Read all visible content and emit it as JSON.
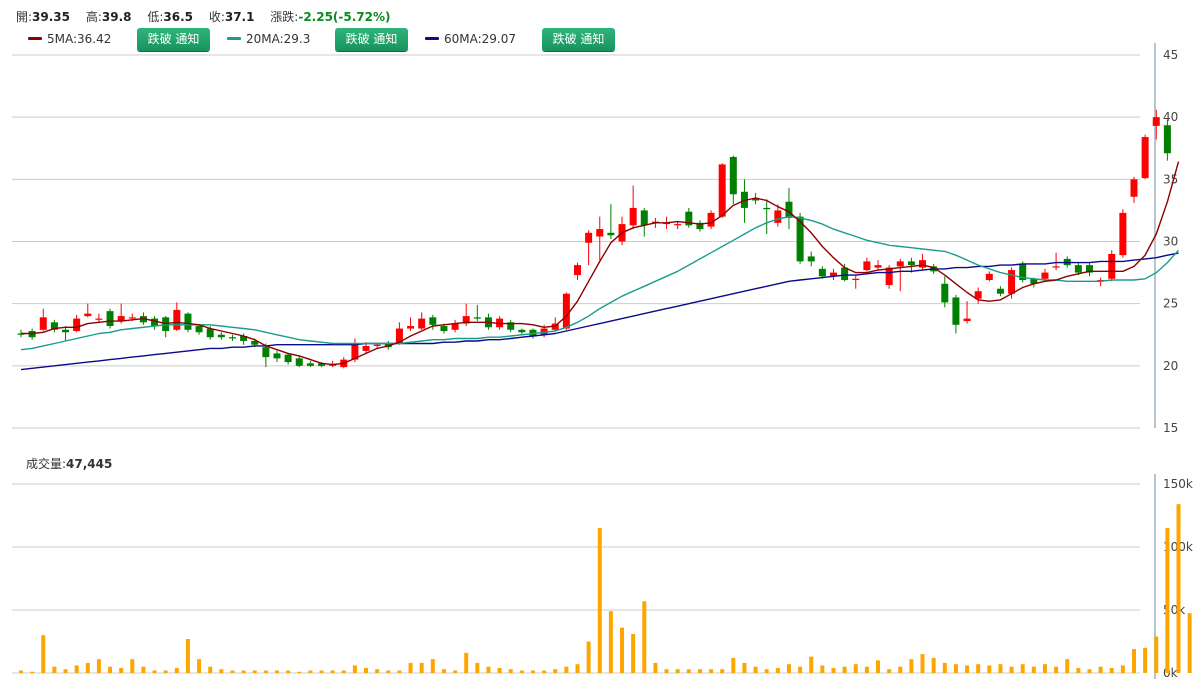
{
  "quote": {
    "open_label": "開:",
    "open": "39.35",
    "high_label": "高:",
    "high": "39.8",
    "low_label": "低:",
    "low": "36.5",
    "close_label": "收:",
    "close": "37.1",
    "change_label": "漲跌:",
    "change": "-2.25(-5.72%)"
  },
  "ma_legend": [
    {
      "label": "5MA:36.42",
      "color": "#8b0000",
      "button": "跌破 通知"
    },
    {
      "label": "20MA:29.3",
      "color": "#1a9c8c",
      "button": "跌破 通知"
    },
    {
      "label": "60MA:29.07",
      "color": "#0a0a8a",
      "button": "跌破 通知"
    }
  ],
  "volume": {
    "label": "成交量:",
    "value": "47,445"
  },
  "colors": {
    "up": "#ff0000",
    "down": "#008000",
    "volume_bar": "#ffa500",
    "grid": "#cccccc"
  },
  "chart_data": [
    {
      "type": "candlestick",
      "yticks": [
        "45",
        "40",
        "35",
        "30",
        "25",
        "20",
        "15"
      ],
      "ylim": [
        15,
        45
      ],
      "grid": true,
      "candles": [
        {
          "o": 22.6,
          "c": 22.5,
          "h": 22.9,
          "l": 22.3
        },
        {
          "o": 22.8,
          "c": 22.3,
          "h": 23.0,
          "l": 22.1
        },
        {
          "o": 22.9,
          "c": 23.9,
          "h": 24.6,
          "l": 22.8
        },
        {
          "o": 23.5,
          "c": 22.9,
          "h": 23.7,
          "l": 22.7
        },
        {
          "o": 22.9,
          "c": 22.7,
          "h": 23.2,
          "l": 22.0
        },
        {
          "o": 22.8,
          "c": 23.8,
          "h": 24.1,
          "l": 22.7
        },
        {
          "o": 24.0,
          "c": 24.2,
          "h": 25.0,
          "l": 23.9
        },
        {
          "o": 23.8,
          "c": 23.8,
          "h": 24.2,
          "l": 23.5
        },
        {
          "o": 24.4,
          "c": 23.2,
          "h": 24.6,
          "l": 23.0
        },
        {
          "o": 23.6,
          "c": 24.0,
          "h": 25.0,
          "l": 23.4
        },
        {
          "o": 23.9,
          "c": 23.9,
          "h": 24.2,
          "l": 23.6
        },
        {
          "o": 24.0,
          "c": 23.5,
          "h": 24.3,
          "l": 23.3
        },
        {
          "o": 23.8,
          "c": 23.2,
          "h": 24.0,
          "l": 22.9
        },
        {
          "o": 23.9,
          "c": 22.8,
          "h": 24.0,
          "l": 22.3
        },
        {
          "o": 22.9,
          "c": 24.5,
          "h": 25.1,
          "l": 22.8
        },
        {
          "o": 24.2,
          "c": 22.9,
          "h": 24.3,
          "l": 22.7
        },
        {
          "o": 23.2,
          "c": 22.7,
          "h": 23.3,
          "l": 22.5
        },
        {
          "o": 23.0,
          "c": 22.3,
          "h": 23.2,
          "l": 22.1
        },
        {
          "o": 22.5,
          "c": 22.3,
          "h": 22.7,
          "l": 22.1
        },
        {
          "o": 22.3,
          "c": 22.2,
          "h": 22.5,
          "l": 22.0
        },
        {
          "o": 22.4,
          "c": 22.0,
          "h": 22.6,
          "l": 21.7
        },
        {
          "o": 22.0,
          "c": 21.7,
          "h": 22.2,
          "l": 21.5
        },
        {
          "o": 21.5,
          "c": 20.7,
          "h": 21.8,
          "l": 19.9
        },
        {
          "o": 21.0,
          "c": 20.6,
          "h": 21.2,
          "l": 20.3
        },
        {
          "o": 20.9,
          "c": 20.3,
          "h": 21.0,
          "l": 20.1
        },
        {
          "o": 20.6,
          "c": 20.0,
          "h": 20.8,
          "l": 19.9
        },
        {
          "o": 20.2,
          "c": 20.0,
          "h": 20.4,
          "l": 19.9
        },
        {
          "o": 20.2,
          "c": 20.0,
          "h": 20.3,
          "l": 19.9
        },
        {
          "o": 20.1,
          "c": 20.1,
          "h": 20.4,
          "l": 19.9
        },
        {
          "o": 19.9,
          "c": 20.5,
          "h": 20.7,
          "l": 19.8
        },
        {
          "o": 20.5,
          "c": 21.8,
          "h": 22.2,
          "l": 20.3
        },
        {
          "o": 21.2,
          "c": 21.6,
          "h": 21.9,
          "l": 21.0
        },
        {
          "o": 21.6,
          "c": 21.7,
          "h": 21.8,
          "l": 21.4
        },
        {
          "o": 21.8,
          "c": 21.5,
          "h": 22.0,
          "l": 21.3
        },
        {
          "o": 21.8,
          "c": 23.0,
          "h": 23.5,
          "l": 21.7
        },
        {
          "o": 23.0,
          "c": 23.2,
          "h": 23.9,
          "l": 22.8
        },
        {
          "o": 23.0,
          "c": 23.8,
          "h": 24.3,
          "l": 22.9
        },
        {
          "o": 23.9,
          "c": 23.3,
          "h": 24.1,
          "l": 22.9
        },
        {
          "o": 23.2,
          "c": 22.8,
          "h": 23.4,
          "l": 22.6
        },
        {
          "o": 22.9,
          "c": 23.4,
          "h": 23.7,
          "l": 22.7
        },
        {
          "o": 23.4,
          "c": 24.0,
          "h": 25.0,
          "l": 23.2
        },
        {
          "o": 23.9,
          "c": 23.8,
          "h": 24.9,
          "l": 23.6
        },
        {
          "o": 23.9,
          "c": 23.1,
          "h": 24.2,
          "l": 22.9
        },
        {
          "o": 23.1,
          "c": 23.8,
          "h": 24.0,
          "l": 22.9
        },
        {
          "o": 23.5,
          "c": 22.9,
          "h": 23.7,
          "l": 22.7
        },
        {
          "o": 22.9,
          "c": 22.7,
          "h": 23.0,
          "l": 22.5
        },
        {
          "o": 22.9,
          "c": 22.4,
          "h": 23.0,
          "l": 22.2
        },
        {
          "o": 22.5,
          "c": 23.0,
          "h": 23.3,
          "l": 22.3
        },
        {
          "o": 22.9,
          "c": 23.4,
          "h": 23.9,
          "l": 22.8
        },
        {
          "o": 23.0,
          "c": 25.8,
          "h": 25.9,
          "l": 22.9
        },
        {
          "o": 27.3,
          "c": 28.1,
          "h": 28.3,
          "l": 26.9
        },
        {
          "o": 29.9,
          "c": 30.7,
          "h": 30.9,
          "l": 28.1
        },
        {
          "o": 30.4,
          "c": 31.0,
          "h": 32.0,
          "l": 28.5
        },
        {
          "o": 30.7,
          "c": 30.5,
          "h": 33.0,
          "l": 30.2
        },
        {
          "o": 30.0,
          "c": 31.4,
          "h": 32.0,
          "l": 29.7
        },
        {
          "o": 31.3,
          "c": 32.7,
          "h": 34.5,
          "l": 31.0
        },
        {
          "o": 32.5,
          "c": 31.3,
          "h": 32.7,
          "l": 30.4
        },
        {
          "o": 31.5,
          "c": 31.6,
          "h": 31.9,
          "l": 31.1
        },
        {
          "o": 31.4,
          "c": 31.5,
          "h": 32.0,
          "l": 31.0
        },
        {
          "o": 31.4,
          "c": 31.4,
          "h": 31.6,
          "l": 31.0
        },
        {
          "o": 32.4,
          "c": 31.3,
          "h": 32.7,
          "l": 31.1
        },
        {
          "o": 31.5,
          "c": 31.0,
          "h": 31.7,
          "l": 30.8
        },
        {
          "o": 31.2,
          "c": 32.3,
          "h": 32.5,
          "l": 31.0
        },
        {
          "o": 32.0,
          "c": 36.2,
          "h": 36.3,
          "l": 31.9
        },
        {
          "o": 36.8,
          "c": 33.8,
          "h": 36.9,
          "l": 33.0
        },
        {
          "o": 34.0,
          "c": 32.7,
          "h": 35.0,
          "l": 31.5
        },
        {
          "o": 33.5,
          "c": 33.3,
          "h": 33.9,
          "l": 33.0
        },
        {
          "o": 32.7,
          "c": 32.6,
          "h": 33.4,
          "l": 30.6
        },
        {
          "o": 31.5,
          "c": 32.5,
          "h": 33.0,
          "l": 31.2
        },
        {
          "o": 33.2,
          "c": 31.9,
          "h": 34.3,
          "l": 31.0
        },
        {
          "o": 32.0,
          "c": 28.4,
          "h": 32.3,
          "l": 28.2
        },
        {
          "o": 28.8,
          "c": 28.4,
          "h": 29.2,
          "l": 28.0
        },
        {
          "o": 27.8,
          "c": 27.2,
          "h": 28.0,
          "l": 27.0
        },
        {
          "o": 27.2,
          "c": 27.5,
          "h": 27.8,
          "l": 26.9
        },
        {
          "o": 27.9,
          "c": 26.9,
          "h": 28.2,
          "l": 26.8
        },
        {
          "o": 26.9,
          "c": 27.0,
          "h": 27.3,
          "l": 26.2
        },
        {
          "o": 27.7,
          "c": 28.4,
          "h": 28.7,
          "l": 27.6
        },
        {
          "o": 27.9,
          "c": 28.1,
          "h": 28.5,
          "l": 27.7
        },
        {
          "o": 26.5,
          "c": 27.9,
          "h": 28.1,
          "l": 26.2
        },
        {
          "o": 28.0,
          "c": 28.4,
          "h": 28.6,
          "l": 26.0
        },
        {
          "o": 28.4,
          "c": 28.1,
          "h": 28.7,
          "l": 27.5
        },
        {
          "o": 27.9,
          "c": 28.5,
          "h": 29.0,
          "l": 27.7
        },
        {
          "o": 28.0,
          "c": 27.6,
          "h": 28.2,
          "l": 27.4
        },
        {
          "o": 26.6,
          "c": 25.1,
          "h": 27.2,
          "l": 24.7
        },
        {
          "o": 25.5,
          "c": 23.3,
          "h": 25.7,
          "l": 22.6
        },
        {
          "o": 23.6,
          "c": 23.8,
          "h": 25.2,
          "l": 23.4
        },
        {
          "o": 25.4,
          "c": 26.0,
          "h": 26.3,
          "l": 25.0
        },
        {
          "o": 26.9,
          "c": 27.4,
          "h": 27.6,
          "l": 26.8
        },
        {
          "o": 26.2,
          "c": 25.8,
          "h": 26.4,
          "l": 25.6
        },
        {
          "o": 25.8,
          "c": 27.7,
          "h": 27.9,
          "l": 25.4
        },
        {
          "o": 28.2,
          "c": 26.9,
          "h": 28.4,
          "l": 26.7
        },
        {
          "o": 27.0,
          "c": 26.6,
          "h": 27.1,
          "l": 26.3
        },
        {
          "o": 27.0,
          "c": 27.5,
          "h": 27.8,
          "l": 26.8
        },
        {
          "o": 27.9,
          "c": 28.0,
          "h": 29.1,
          "l": 27.7
        },
        {
          "o": 28.6,
          "c": 28.1,
          "h": 28.8,
          "l": 27.9
        },
        {
          "o": 28.1,
          "c": 27.5,
          "h": 28.3,
          "l": 27.3
        },
        {
          "o": 28.1,
          "c": 27.5,
          "h": 28.3,
          "l": 27.2
        },
        {
          "o": 26.8,
          "c": 26.9,
          "h": 27.1,
          "l": 26.4
        },
        {
          "o": 27.0,
          "c": 29.0,
          "h": 29.3,
          "l": 26.8
        },
        {
          "o": 28.9,
          "c": 32.3,
          "h": 32.6,
          "l": 28.7
        },
        {
          "o": 33.6,
          "c": 35.0,
          "h": 35.2,
          "l": 33.1
        },
        {
          "o": 35.1,
          "c": 38.4,
          "h": 38.6,
          "l": 35.0
        },
        {
          "o": 39.3,
          "c": 40.0,
          "h": 40.6,
          "l": 38.2
        },
        {
          "o": 39.35,
          "c": 37.1,
          "h": 39.8,
          "l": 36.5
        }
      ],
      "ma5": [
        22.6,
        22.6,
        22.7,
        23.0,
        23.1,
        23.1,
        23.4,
        23.5,
        23.6,
        23.6,
        23.7,
        23.8,
        23.6,
        23.4,
        23.5,
        23.4,
        23.3,
        23.0,
        22.8,
        22.6,
        22.4,
        22.1,
        21.6,
        21.3,
        21.0,
        20.8,
        20.5,
        20.2,
        20.1,
        20.2,
        20.6,
        21.0,
        21.4,
        21.6,
        21.9,
        22.4,
        22.8,
        23.2,
        23.3,
        23.4,
        23.5,
        23.5,
        23.5,
        23.4,
        23.4,
        23.4,
        23.3,
        23.1,
        23.2,
        24.0,
        25.2,
        26.8,
        28.4,
        29.9,
        30.7,
        31.1,
        31.3,
        31.5,
        31.5,
        31.6,
        31.5,
        31.4,
        31.5,
        32.1,
        32.9,
        33.3,
        33.5,
        33.3,
        32.8,
        32.4,
        31.6,
        30.7,
        29.6,
        28.7,
        27.9,
        27.5,
        27.5,
        27.7,
        27.8,
        27.9,
        28.0,
        28.1,
        27.9,
        27.3,
        26.6,
        25.9,
        25.3,
        25.2,
        25.3,
        25.8,
        26.3,
        26.6,
        26.8,
        26.9,
        27.2,
        27.4,
        27.6,
        27.6,
        27.6,
        27.6,
        28.0,
        28.9,
        30.6,
        33.2,
        36.42
      ],
      "ma20": [
        21.3,
        21.4,
        21.6,
        21.8,
        22.0,
        22.2,
        22.4,
        22.6,
        22.7,
        22.9,
        23.0,
        23.1,
        23.2,
        23.3,
        23.3,
        23.3,
        23.3,
        23.3,
        23.2,
        23.1,
        23.0,
        22.9,
        22.7,
        22.5,
        22.3,
        22.1,
        22.0,
        21.9,
        21.8,
        21.8,
        21.8,
        21.8,
        21.8,
        21.8,
        21.8,
        21.9,
        22.0,
        22.1,
        22.1,
        22.2,
        22.2,
        22.2,
        22.3,
        22.3,
        22.4,
        22.5,
        22.6,
        22.7,
        22.8,
        23.1,
        23.5,
        24.0,
        24.6,
        25.1,
        25.6,
        26.0,
        26.4,
        26.8,
        27.2,
        27.6,
        28.1,
        28.6,
        29.1,
        29.6,
        30.1,
        30.6,
        31.1,
        31.5,
        31.8,
        32.0,
        31.9,
        31.7,
        31.4,
        31.0,
        30.7,
        30.4,
        30.1,
        29.9,
        29.7,
        29.6,
        29.5,
        29.4,
        29.3,
        29.2,
        28.9,
        28.5,
        28.1,
        27.8,
        27.5,
        27.3,
        27.1,
        27.0,
        26.9,
        26.9,
        26.8,
        26.8,
        26.8,
        26.8,
        26.9,
        26.9,
        26.9,
        27.0,
        27.5,
        28.3,
        29.3
      ],
      "ma60": [
        19.7,
        19.8,
        19.9,
        20.0,
        20.1,
        20.2,
        20.3,
        20.4,
        20.5,
        20.6,
        20.7,
        20.8,
        20.9,
        21.0,
        21.1,
        21.2,
        21.3,
        21.4,
        21.4,
        21.5,
        21.5,
        21.6,
        21.6,
        21.7,
        21.7,
        21.7,
        21.7,
        21.7,
        21.7,
        21.7,
        21.7,
        21.8,
        21.8,
        21.8,
        21.8,
        21.8,
        21.8,
        21.8,
        21.9,
        21.9,
        22.0,
        22.0,
        22.1,
        22.1,
        22.2,
        22.3,
        22.4,
        22.5,
        22.6,
        22.8,
        23.0,
        23.2,
        23.4,
        23.6,
        23.8,
        24.0,
        24.2,
        24.4,
        24.6,
        24.8,
        25.0,
        25.2,
        25.4,
        25.6,
        25.8,
        26.0,
        26.2,
        26.4,
        26.6,
        26.8,
        26.9,
        27.0,
        27.1,
        27.2,
        27.3,
        27.3,
        27.4,
        27.5,
        27.5,
        27.6,
        27.6,
        27.7,
        27.8,
        27.8,
        27.9,
        27.9,
        28.0,
        28.0,
        28.1,
        28.1,
        28.2,
        28.2,
        28.2,
        28.3,
        28.3,
        28.3,
        28.3,
        28.4,
        28.4,
        28.4,
        28.5,
        28.6,
        28.7,
        28.9,
        29.07
      ]
    },
    {
      "type": "bar",
      "yticks": [
        "150k",
        "100k",
        "50k",
        "0k"
      ],
      "ylim": [
        0,
        150000
      ],
      "grid": true,
      "values": [
        2000,
        1000,
        30000,
        5000,
        3000,
        6000,
        8000,
        11000,
        5000,
        4000,
        11000,
        5000,
        2000,
        2000,
        4000,
        27000,
        11000,
        5000,
        3000,
        2000,
        2000,
        2000,
        2000,
        2000,
        2000,
        1000,
        2000,
        2000,
        2000,
        2000,
        6000,
        4000,
        3000,
        2000,
        2000,
        8000,
        8000,
        11000,
        3000,
        2000,
        16000,
        8000,
        5000,
        4000,
        3000,
        2000,
        2000,
        2000,
        3000,
        5000,
        7000,
        25000,
        115000,
        49000,
        36000,
        31000,
        57000,
        8000,
        3000,
        3000,
        3000,
        3000,
        3000,
        3000,
        12000,
        8000,
        5000,
        3000,
        4000,
        7000,
        5000,
        13000,
        6000,
        4000,
        5000,
        7000,
        5000,
        10000,
        3000,
        5000,
        11000,
        15000,
        12000,
        8000,
        7000,
        6000,
        7000,
        6000,
        7000,
        5000,
        7000,
        5000,
        7000,
        5000,
        11000,
        4000,
        3000,
        5000,
        4000,
        6000,
        19000,
        20000,
        29000,
        115000,
        134000,
        47445
      ]
    }
  ]
}
